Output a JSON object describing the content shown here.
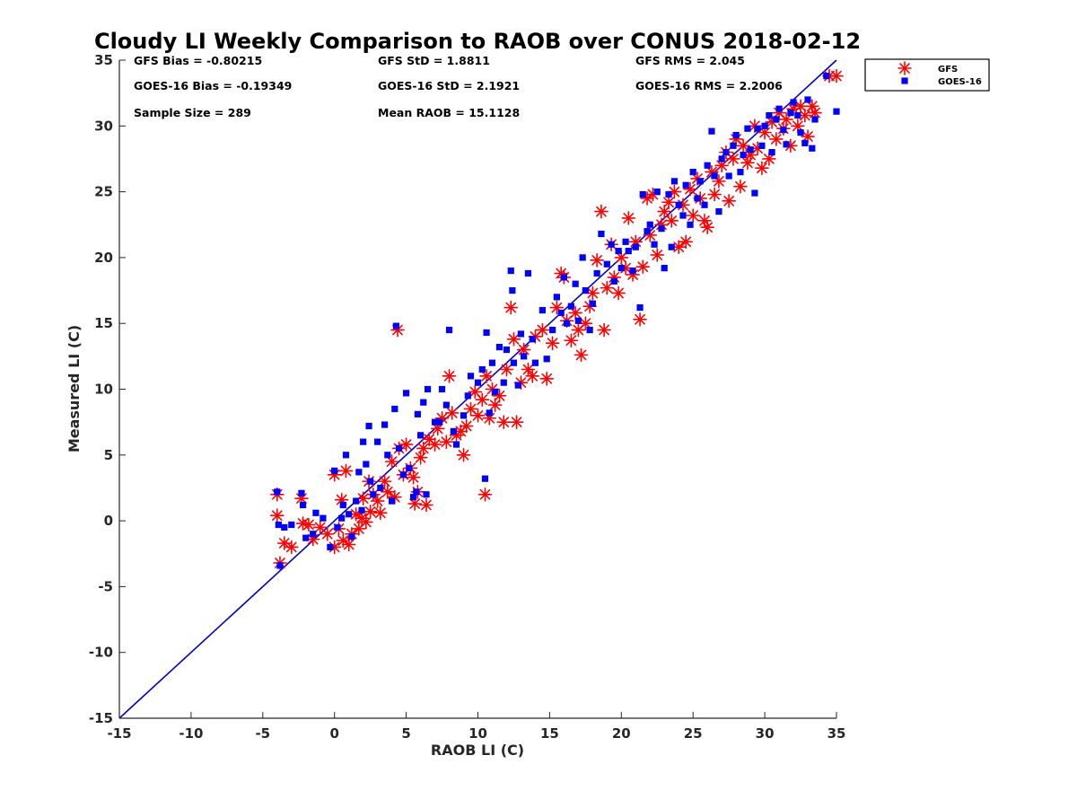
{
  "chart_data": {
    "type": "scatter",
    "title": "Cloudy LI Weekly Comparison to RAOB over CONUS 2018-02-12",
    "xlabel": "RAOB LI (C)",
    "ylabel": "Measured LI (C)",
    "xlim": [
      -15,
      35
    ],
    "ylim": [
      -15,
      35
    ],
    "xticks": [
      "-15",
      "-10",
      "-5",
      "0",
      "5",
      "10",
      "15",
      "20",
      "25",
      "30",
      "35"
    ],
    "yticks": [
      "-15",
      "-10",
      "-5",
      "0",
      "5",
      "10",
      "15",
      "20",
      "25",
      "30",
      "35"
    ],
    "grid": false,
    "legend_position": "outside-top-right",
    "reference_line": {
      "x": [
        -15,
        35
      ],
      "y": [
        -15,
        35
      ],
      "color": "#0000cc"
    },
    "annotations": [
      "GFS Bias = -0.80215",
      "GFS StD = 1.8811",
      "GFS RMS = 2.045",
      "GOES-16 Bias = -0.19349",
      "GOES-16 StD = 2.1921",
      "GOES-16 RMS = 2.2006",
      "Sample Size = 289",
      "Mean RAOB = 15.1128"
    ],
    "series": [
      {
        "name": "GFS",
        "marker": "asterisk",
        "color": "#ff0000",
        "points": [
          [
            -4,
            2
          ],
          [
            -4,
            0.4
          ],
          [
            -3.8,
            -3.2
          ],
          [
            -3.5,
            -1.7
          ],
          [
            -3,
            -2
          ],
          [
            -2.3,
            1.7
          ],
          [
            -2.2,
            -0.2
          ],
          [
            -1.8,
            -0.3
          ],
          [
            -1.5,
            -1.4
          ],
          [
            -1,
            -0.5
          ],
          [
            -0.5,
            -1
          ],
          [
            0,
            -2
          ],
          [
            0,
            3.5
          ],
          [
            0.3,
            -0.6
          ],
          [
            0.5,
            1.6
          ],
          [
            0.6,
            -1.5
          ],
          [
            0.8,
            3.8
          ],
          [
            1,
            -1.8
          ],
          [
            1.2,
            -1
          ],
          [
            1.5,
            0.5
          ],
          [
            1.7,
            -0.6
          ],
          [
            1.9,
            0.2
          ],
          [
            2,
            1.7
          ],
          [
            2.2,
            -0.1
          ],
          [
            2.4,
            3
          ],
          [
            2.5,
            0.7
          ],
          [
            2.7,
            2
          ],
          [
            3,
            1.5
          ],
          [
            3.2,
            0.6
          ],
          [
            3.5,
            3
          ],
          [
            3.7,
            2.2
          ],
          [
            4,
            4.5
          ],
          [
            4.2,
            1.8
          ],
          [
            4.4,
            14.5
          ],
          [
            4.5,
            5.5
          ],
          [
            4.8,
            3.5
          ],
          [
            5,
            5.8
          ],
          [
            5.3,
            4
          ],
          [
            5.5,
            3.3
          ],
          [
            5.6,
            1.3
          ],
          [
            5.8,
            2.2
          ],
          [
            6,
            4.8
          ],
          [
            6.2,
            5.5
          ],
          [
            6.4,
            1.2
          ],
          [
            6.6,
            6.2
          ],
          [
            7,
            5.8
          ],
          [
            7.2,
            7
          ],
          [
            7.5,
            7.8
          ],
          [
            7.8,
            6
          ],
          [
            8,
            11
          ],
          [
            8.2,
            8.2
          ],
          [
            8.5,
            6.5
          ],
          [
            8.8,
            6.8
          ],
          [
            9,
            5
          ],
          [
            9.2,
            7.2
          ],
          [
            9.5,
            8.5
          ],
          [
            9.8,
            9.8
          ],
          [
            10,
            8
          ],
          [
            10.3,
            9.2
          ],
          [
            10.5,
            2
          ],
          [
            10.6,
            11
          ],
          [
            10.8,
            7.8
          ],
          [
            11,
            10
          ],
          [
            11.2,
            8.8
          ],
          [
            11.5,
            9.5
          ],
          [
            11.8,
            7.5
          ],
          [
            12,
            11.5
          ],
          [
            12.3,
            16.2
          ],
          [
            12.5,
            13.8
          ],
          [
            12.7,
            7.5
          ],
          [
            13,
            10.5
          ],
          [
            13.2,
            13
          ],
          [
            13.5,
            11.5
          ],
          [
            13.8,
            11
          ],
          [
            14,
            14
          ],
          [
            14.5,
            14.5
          ],
          [
            14.8,
            10.8
          ],
          [
            15.2,
            13.5
          ],
          [
            15.5,
            16.2
          ],
          [
            15.8,
            18.8
          ],
          [
            16,
            18.5
          ],
          [
            16.2,
            15.2
          ],
          [
            16.5,
            13.7
          ],
          [
            16.8,
            15.8
          ],
          [
            17,
            14.5
          ],
          [
            17.2,
            12.6
          ],
          [
            17.5,
            15
          ],
          [
            17.8,
            16.3
          ],
          [
            18,
            17.3
          ],
          [
            18.3,
            19.8
          ],
          [
            18.6,
            23.5
          ],
          [
            18.8,
            14.5
          ],
          [
            19,
            17.7
          ],
          [
            19.3,
            21
          ],
          [
            19.5,
            18.5
          ],
          [
            19.8,
            17.3
          ],
          [
            20,
            20
          ],
          [
            20.3,
            19.2
          ],
          [
            20.5,
            23
          ],
          [
            20.8,
            18.7
          ],
          [
            21,
            21.2
          ],
          [
            21.3,
            15.3
          ],
          [
            21.5,
            19.3
          ],
          [
            21.8,
            24.5
          ],
          [
            22,
            21.7
          ],
          [
            22.2,
            24.8
          ],
          [
            22.5,
            20.2
          ],
          [
            22.8,
            22.5
          ],
          [
            23,
            23.5
          ],
          [
            23.3,
            24.2
          ],
          [
            23.5,
            22.8
          ],
          [
            23.7,
            25
          ],
          [
            24,
            20.8
          ],
          [
            24.3,
            24
          ],
          [
            24.5,
            21.2
          ],
          [
            24.8,
            25.2
          ],
          [
            25,
            23.2
          ],
          [
            25.3,
            26
          ],
          [
            25.5,
            24.5
          ],
          [
            25.8,
            22.8
          ],
          [
            26,
            22.3
          ],
          [
            26.3,
            26.5
          ],
          [
            26.5,
            24.8
          ],
          [
            26.8,
            25.8
          ],
          [
            27,
            27
          ],
          [
            27.3,
            28
          ],
          [
            27.5,
            24.3
          ],
          [
            27.8,
            27.5
          ],
          [
            28,
            29
          ],
          [
            28.3,
            25.4
          ],
          [
            28.5,
            28.5
          ],
          [
            28.8,
            27.2
          ],
          [
            29,
            27.8
          ],
          [
            29.3,
            30
          ],
          [
            29.5,
            28.3
          ],
          [
            29.8,
            26.8
          ],
          [
            30,
            29.5
          ],
          [
            30.3,
            27.5
          ],
          [
            30.5,
            30.3
          ],
          [
            30.8,
            29
          ],
          [
            31,
            31
          ],
          [
            31.3,
            29.8
          ],
          [
            31.5,
            30.5
          ],
          [
            31.8,
            28.5
          ],
          [
            32,
            31.3
          ],
          [
            32.3,
            30
          ],
          [
            32.5,
            31.5
          ],
          [
            32.8,
            30.8
          ],
          [
            33,
            29.2
          ],
          [
            33.3,
            31.5
          ],
          [
            33.5,
            31
          ],
          [
            34.5,
            33.8
          ],
          [
            35,
            33.8
          ]
        ]
      },
      {
        "name": "GOES-16",
        "marker": "square",
        "color": "#0000ff",
        "points": [
          [
            -4,
            2.2
          ],
          [
            -3.9,
            -0.3
          ],
          [
            -3.8,
            -3.4
          ],
          [
            -3.5,
            -0.5
          ],
          [
            -3,
            -0.3
          ],
          [
            -2.3,
            2.1
          ],
          [
            -2.2,
            1.2
          ],
          [
            -2,
            -1.3
          ],
          [
            -1.5,
            -1
          ],
          [
            -1.3,
            0.6
          ],
          [
            -0.8,
            0.2
          ],
          [
            -0.3,
            -2
          ],
          [
            0,
            3.8
          ],
          [
            0.2,
            -0.5
          ],
          [
            0.5,
            0.2
          ],
          [
            0.6,
            1.2
          ],
          [
            0.8,
            5
          ],
          [
            1,
            0.5
          ],
          [
            1.2,
            -1.2
          ],
          [
            1.5,
            1.5
          ],
          [
            1.7,
            3.7
          ],
          [
            1.9,
            0.8
          ],
          [
            2,
            6
          ],
          [
            2.2,
            4.3
          ],
          [
            2.4,
            7.2
          ],
          [
            2.5,
            3
          ],
          [
            2.7,
            2
          ],
          [
            3,
            6
          ],
          [
            3.2,
            2.5
          ],
          [
            3.5,
            7.3
          ],
          [
            3.7,
            5
          ],
          [
            4,
            1.5
          ],
          [
            4.2,
            8.5
          ],
          [
            4.3,
            14.8
          ],
          [
            4.5,
            5.5
          ],
          [
            4.8,
            3.5
          ],
          [
            5,
            9.7
          ],
          [
            5.2,
            4
          ],
          [
            5.5,
            1.8
          ],
          [
            5.7,
            2.2
          ],
          [
            5.8,
            8.1
          ],
          [
            6,
            6.5
          ],
          [
            6.2,
            9
          ],
          [
            6.4,
            2
          ],
          [
            6.5,
            10
          ],
          [
            7,
            7.5
          ],
          [
            7.3,
            7.5
          ],
          [
            7.5,
            10
          ],
          [
            7.8,
            8.8
          ],
          [
            8,
            14.5
          ],
          [
            8.3,
            6.8
          ],
          [
            8.5,
            5.8
          ],
          [
            9,
            8
          ],
          [
            9.3,
            9.5
          ],
          [
            9.5,
            11
          ],
          [
            10,
            10.5
          ],
          [
            10.3,
            11.5
          ],
          [
            10.5,
            3.2
          ],
          [
            10.6,
            14.3
          ],
          [
            10.8,
            8.2
          ],
          [
            11,
            12
          ],
          [
            11.2,
            9.8
          ],
          [
            11.5,
            13.2
          ],
          [
            11.8,
            10.5
          ],
          [
            12,
            13
          ],
          [
            12.3,
            19
          ],
          [
            12.4,
            17.5
          ],
          [
            12.5,
            12
          ],
          [
            12.8,
            10.3
          ],
          [
            13,
            14.2
          ],
          [
            13.2,
            12.5
          ],
          [
            13.5,
            18.8
          ],
          [
            13.8,
            13.8
          ],
          [
            14,
            12
          ],
          [
            14.5,
            16
          ],
          [
            14.8,
            12.3
          ],
          [
            15.2,
            14.5
          ],
          [
            15.5,
            17
          ],
          [
            15.8,
            15.8
          ],
          [
            16,
            18.5
          ],
          [
            16.2,
            15
          ],
          [
            16.5,
            16.3
          ],
          [
            16.8,
            18
          ],
          [
            17,
            15.2
          ],
          [
            17.3,
            20
          ],
          [
            17.5,
            17.5
          ],
          [
            17.8,
            14.5
          ],
          [
            18,
            16.5
          ],
          [
            18.3,
            18.8
          ],
          [
            18.6,
            21.8
          ],
          [
            19,
            19.5
          ],
          [
            19.3,
            21
          ],
          [
            19.5,
            18.2
          ],
          [
            19.8,
            20.5
          ],
          [
            20,
            19.2
          ],
          [
            20.3,
            21.2
          ],
          [
            20.5,
            20.5
          ],
          [
            20.8,
            19
          ],
          [
            21,
            20.8
          ],
          [
            21.3,
            16.2
          ],
          [
            21.5,
            24.8
          ],
          [
            21.8,
            22
          ],
          [
            22,
            22.5
          ],
          [
            22.3,
            21
          ],
          [
            22.5,
            25
          ],
          [
            22.8,
            22.2
          ],
          [
            23,
            19.2
          ],
          [
            23.3,
            24.8
          ],
          [
            23.5,
            20.8
          ],
          [
            23.7,
            25.8
          ],
          [
            24,
            24
          ],
          [
            24.3,
            23.2
          ],
          [
            24.5,
            25.5
          ],
          [
            24.8,
            22.5
          ],
          [
            25,
            26.5
          ],
          [
            25.3,
            24.5
          ],
          [
            25.5,
            25.8
          ],
          [
            25.8,
            24
          ],
          [
            26,
            27
          ],
          [
            26.3,
            29.6
          ],
          [
            26.5,
            26.2
          ],
          [
            26.8,
            23.5
          ],
          [
            27,
            27.5
          ],
          [
            27.3,
            28
          ],
          [
            27.5,
            26.2
          ],
          [
            27.8,
            28.5
          ],
          [
            28,
            29.3
          ],
          [
            28.3,
            26.5
          ],
          [
            28.5,
            27.8
          ],
          [
            28.8,
            29.8
          ],
          [
            29,
            28.2
          ],
          [
            29.3,
            24.9
          ],
          [
            29.5,
            29.8
          ],
          [
            29.8,
            28.5
          ],
          [
            30,
            30
          ],
          [
            30.3,
            30.8
          ],
          [
            30.5,
            28
          ],
          [
            30.8,
            30.5
          ],
          [
            31,
            31.3
          ],
          [
            31.3,
            29.7
          ],
          [
            31.5,
            28.6
          ],
          [
            31.8,
            31
          ],
          [
            32,
            31.8
          ],
          [
            32.3,
            30.8
          ],
          [
            32.5,
            29.5
          ],
          [
            32.8,
            28.7
          ],
          [
            33,
            32
          ],
          [
            33.3,
            28.3
          ],
          [
            33.5,
            30.5
          ],
          [
            34.3,
            33.8
          ],
          [
            35,
            31.1
          ]
        ]
      }
    ]
  }
}
